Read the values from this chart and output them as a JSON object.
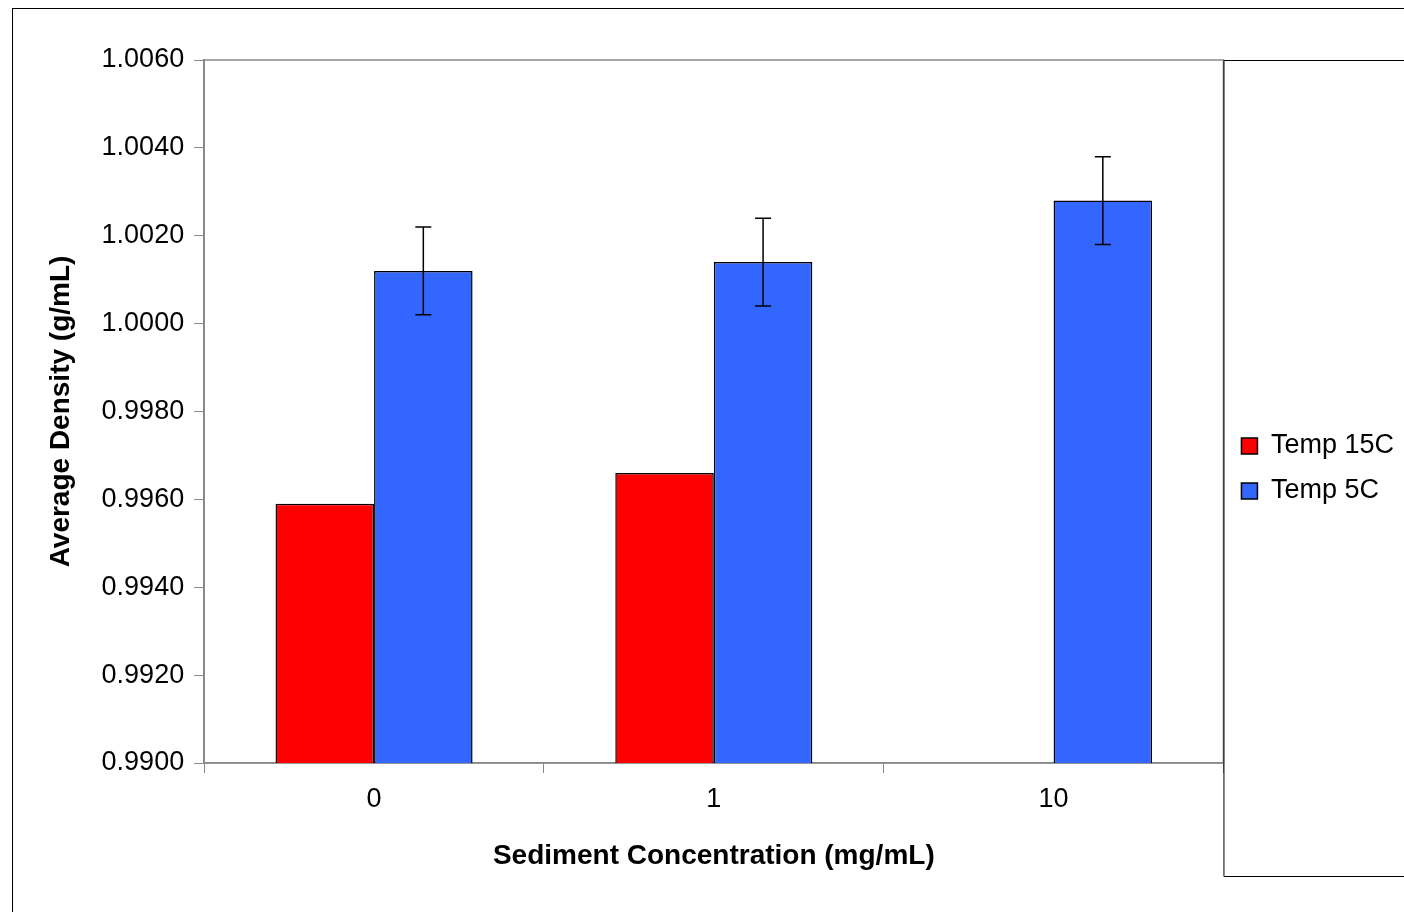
{
  "chart_data": {
    "type": "bar",
    "xlabel": "Sediment Concentration (mg/mL)",
    "ylabel": "Average Density (g/mL)",
    "categories": [
      "0",
      "1",
      "10"
    ],
    "series": [
      {
        "name": "Temp 15C",
        "color": "#ff0000",
        "values": [
          0.9959,
          0.9966,
          null
        ]
      },
      {
        "name": "Temp 5C",
        "color": "#3366ff",
        "values": [
          1.0012,
          1.0014,
          1.0028
        ],
        "errors": [
          0.001,
          0.001,
          0.001
        ]
      }
    ],
    "ylim": [
      0.99,
      1.006
    ],
    "yticks": [
      {
        "value": 0.99,
        "label": "0.9900"
      },
      {
        "value": 0.992,
        "label": "0.9920"
      },
      {
        "value": 0.994,
        "label": "0.9940"
      },
      {
        "value": 0.996,
        "label": "0.9960"
      },
      {
        "value": 0.998,
        "label": "0.9980"
      },
      {
        "value": 1.0,
        "label": "1.0000"
      },
      {
        "value": 1.002,
        "label": "1.0020"
      },
      {
        "value": 1.004,
        "label": "1.0040"
      },
      {
        "value": 1.006,
        "label": "1.0060"
      }
    ],
    "grid": false,
    "legend": "right"
  }
}
